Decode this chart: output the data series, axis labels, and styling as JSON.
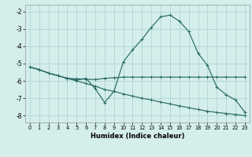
{
  "xlabel": "Humidex (Indice chaleur)",
  "xlim": [
    -0.5,
    23.5
  ],
  "ylim": [
    -8.4,
    -1.6
  ],
  "yticks": [
    -2,
    -3,
    -4,
    -5,
    -6,
    -7,
    -8
  ],
  "xticks": [
    0,
    1,
    2,
    3,
    4,
    5,
    6,
    7,
    8,
    9,
    10,
    11,
    12,
    13,
    14,
    15,
    16,
    17,
    18,
    19,
    20,
    21,
    22,
    23
  ],
  "bg_color": "#d4eeec",
  "grid_color": "#b0d4d0",
  "line_color": "#2a6b65",
  "line1_x": [
    0,
    1,
    2,
    3,
    4,
    5,
    6,
    7,
    8,
    9,
    10,
    11,
    12,
    13,
    14,
    15,
    16,
    17,
    18,
    19,
    20,
    21,
    22,
    23
  ],
  "line1_y": [
    -5.2,
    -5.35,
    -5.55,
    -5.7,
    -5.85,
    -6.0,
    -6.15,
    -6.3,
    -6.5,
    -6.6,
    -6.75,
    -6.88,
    -7.0,
    -7.1,
    -7.22,
    -7.33,
    -7.44,
    -7.55,
    -7.65,
    -7.75,
    -7.82,
    -7.88,
    -7.94,
    -8.0
  ],
  "line2_x": [
    0,
    1,
    2,
    3,
    4,
    5,
    6,
    7,
    8,
    9,
    10,
    11,
    12,
    13,
    14,
    15,
    16,
    17,
    18,
    19,
    20,
    21,
    22,
    23
  ],
  "line2_y": [
    -5.2,
    -5.35,
    -5.55,
    -5.7,
    -5.85,
    -5.88,
    -5.9,
    -5.92,
    -5.85,
    -5.82,
    -5.78,
    -5.78,
    -5.78,
    -5.78,
    -5.78,
    -5.78,
    -5.78,
    -5.78,
    -5.78,
    -5.78,
    -5.78,
    -5.78,
    -5.78,
    -5.78
  ],
  "line3_x": [
    0,
    1,
    2,
    3,
    4,
    5,
    6,
    7,
    8,
    9,
    10,
    11,
    12,
    13,
    14,
    15,
    16,
    17,
    18,
    19,
    20,
    21,
    22,
    23
  ],
  "line3_y": [
    -5.2,
    -5.35,
    -5.55,
    -5.7,
    -5.85,
    -5.95,
    -5.85,
    -6.45,
    -7.25,
    -6.6,
    -4.9,
    -4.2,
    -3.6,
    -2.9,
    -2.3,
    -2.2,
    -2.55,
    -3.15,
    -4.4,
    -5.1,
    -6.35,
    -6.8,
    -7.1,
    -7.8
  ]
}
